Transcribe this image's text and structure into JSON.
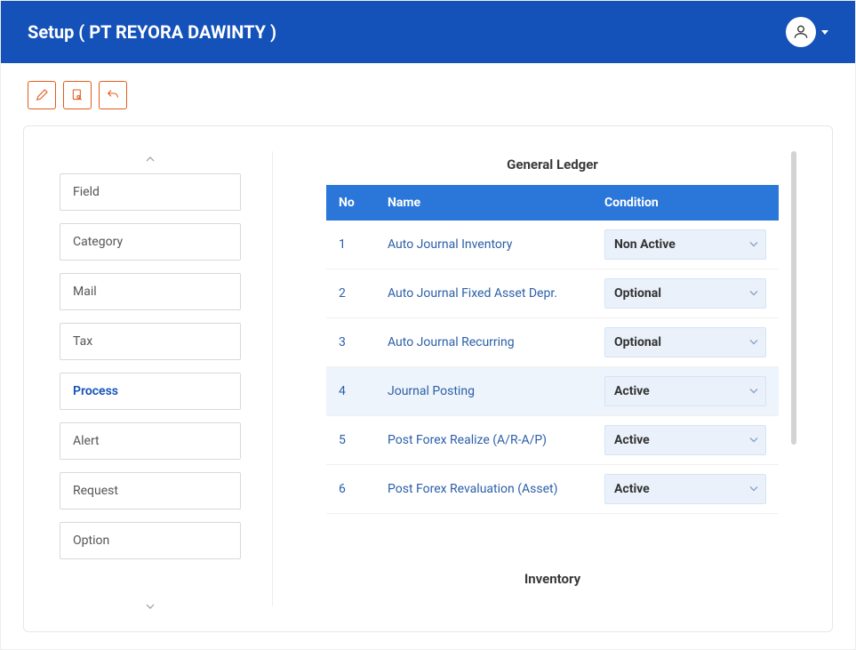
{
  "header": {
    "title": "Setup ( PT REYORA DAWINTY )"
  },
  "sidebar": {
    "items": [
      {
        "label": "Field"
      },
      {
        "label": "Category"
      },
      {
        "label": "Mail"
      },
      {
        "label": "Tax"
      },
      {
        "label": "Process",
        "active": true
      },
      {
        "label": "Alert"
      },
      {
        "label": "Request"
      },
      {
        "label": "Option"
      }
    ]
  },
  "table_headers": {
    "no": "No",
    "name": "Name",
    "condition": "Condition"
  },
  "condition_options": [
    "Active",
    "Non Active",
    "Optional"
  ],
  "sections": [
    {
      "title": "General Ledger",
      "rows": [
        {
          "no": "1",
          "name": "Auto Journal Inventory",
          "condition": "Non Active"
        },
        {
          "no": "2",
          "name": "Auto Journal Fixed Asset Depr.",
          "condition": "Optional"
        },
        {
          "no": "3",
          "name": "Auto Journal Recurring",
          "condition": "Optional"
        },
        {
          "no": "4",
          "name": "Journal Posting",
          "condition": "Active",
          "highlight": true
        },
        {
          "no": "5",
          "name": "Post Forex Realize (A/R-A/P)",
          "condition": "Active"
        },
        {
          "no": "6",
          "name": "Post Forex Revaluation (Asset)",
          "condition": "Active"
        }
      ]
    },
    {
      "title": "Inventory",
      "rows": []
    }
  ],
  "colors": {
    "brand": "#1451b8",
    "table_header": "#2b77d9",
    "accent_orange": "#e25b1a",
    "select_bg": "#eaf1fb",
    "select_border": "#d6e3f5",
    "link_text": "#2b5fa8",
    "highlight_row": "#eef4fb",
    "scrollbar": "#d3d3d3"
  }
}
